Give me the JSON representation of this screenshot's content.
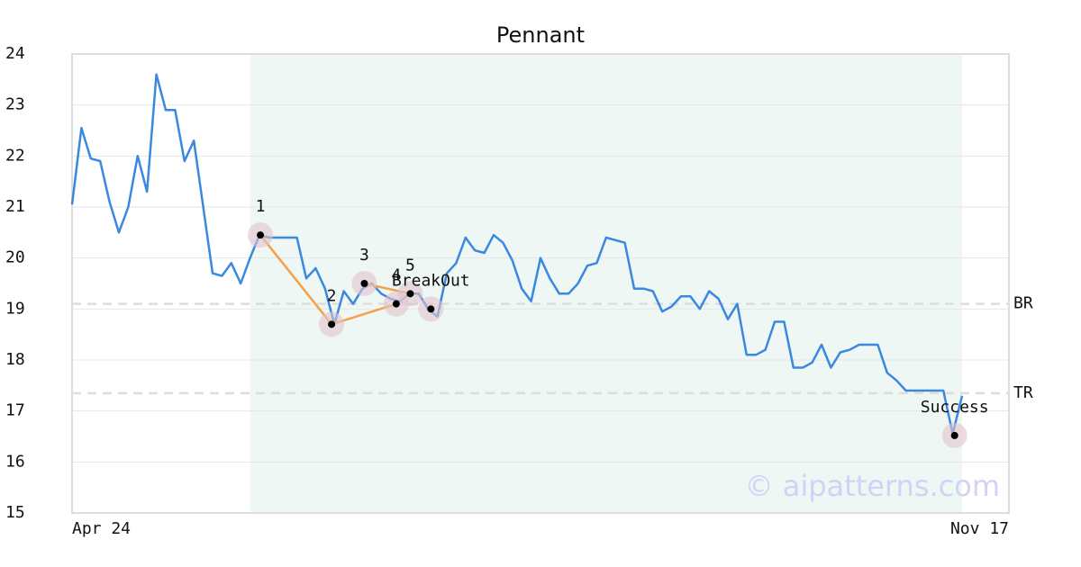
{
  "chart_data": {
    "type": "line",
    "title": "Pennant",
    "categories": [
      "Apr 24",
      null,
      null,
      null,
      null,
      null,
      null,
      null,
      null,
      null,
      null,
      null,
      null,
      null,
      null,
      null,
      null,
      null,
      null,
      null,
      null,
      null,
      null,
      null,
      null,
      null,
      null,
      null,
      null,
      null,
      null,
      null,
      null,
      null,
      null,
      null,
      null,
      null,
      null,
      null,
      null,
      null,
      null,
      null,
      null,
      null,
      null,
      null,
      null,
      null,
      null,
      null,
      null,
      null,
      null,
      null,
      null,
      null,
      null,
      null,
      null,
      null,
      null,
      null,
      null,
      null,
      null,
      null,
      null,
      null,
      null,
      null,
      null,
      null,
      null,
      null,
      null,
      null,
      null,
      null,
      null,
      null,
      null,
      null,
      null,
      null,
      null,
      null,
      null,
      null,
      null,
      null,
      null,
      null,
      null,
      null,
      null,
      null,
      null,
      null,
      "Nov 17"
    ],
    "series": [
      {
        "color": "#3a88e0",
        "values": [
          21.05,
          22.55,
          21.95,
          21.9,
          21.1,
          20.5,
          21.0,
          22.0,
          21.3,
          23.6,
          22.9,
          22.9,
          21.9,
          22.3,
          21.0,
          19.7,
          19.65,
          19.9,
          19.5,
          20.0,
          20.45,
          20.4,
          20.4,
          20.4,
          20.4,
          19.6,
          19.8,
          19.4,
          18.7,
          19.35,
          19.1,
          19.4,
          19.5,
          19.3,
          19.2,
          19.15,
          19.3,
          19.3,
          19.0,
          18.85,
          19.7,
          19.9,
          20.4,
          20.15,
          20.1,
          20.45,
          20.3,
          19.95,
          19.4,
          19.15,
          20.0,
          19.6,
          19.3,
          19.3,
          19.5,
          19.85,
          19.9,
          20.4,
          20.35,
          20.3,
          19.4,
          19.4,
          19.35,
          18.95,
          19.05,
          19.25,
          19.25,
          19.0,
          19.35,
          19.2,
          18.8,
          19.1,
          18.1,
          18.1,
          18.2,
          18.75,
          18.75,
          17.85,
          17.85,
          17.95,
          18.3,
          17.85,
          18.15,
          18.2,
          18.3,
          18.3,
          18.3,
          17.75,
          17.6,
          17.4,
          17.4,
          17.4,
          17.4,
          17.4,
          16.55,
          17.3,
          null,
          null,
          null,
          null,
          null
        ]
      }
    ],
    "ylim": [
      15,
      24
    ],
    "yticks": [
      15,
      16,
      17,
      18,
      19,
      20,
      21,
      22,
      23,
      24
    ],
    "grid": true,
    "shade": {
      "from": 19,
      "to": 95,
      "color": "#eef7f3"
    },
    "hlines": [
      {
        "label": "BR",
        "value": 19.1
      },
      {
        "label": "TR",
        "value": 17.35
      }
    ],
    "markers": [
      {
        "label": "1",
        "x": 20.1,
        "value": 20.45
      },
      {
        "label": "2",
        "x": 27.7,
        "value": 18.7
      },
      {
        "label": "3",
        "x": 31.2,
        "value": 19.5
      },
      {
        "label": "4",
        "x": 34.6,
        "value": 19.1
      },
      {
        "label": "5",
        "x": 36.1,
        "value": 19.3
      },
      {
        "label": "BreakOut",
        "x": 38.3,
        "value": 19.0
      },
      {
        "label": "Success",
        "x": 94.2,
        "value": 16.52
      }
    ],
    "pattern_color": "#f5a04a",
    "watermark": "© aipatterns.com"
  }
}
